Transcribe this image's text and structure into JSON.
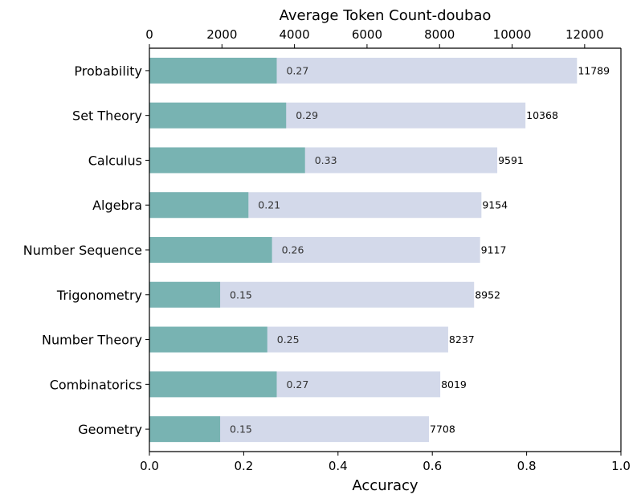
{
  "chart_data": {
    "type": "bar",
    "orientation": "horizontal",
    "categories": [
      "Probability",
      "Set Theory",
      "Calculus",
      "Algebra",
      "Number Sequence",
      "Trigonometry",
      "Number Theory",
      "Combinatorics",
      "Geometry"
    ],
    "series": [
      {
        "axis": "bottom",
        "values": [
          0.27,
          0.29,
          0.33,
          0.21,
          0.26,
          0.15,
          0.25,
          0.27,
          0.15
        ],
        "color": "#78b3b2"
      },
      {
        "axis": "top",
        "values": [
          11789,
          10368,
          9591,
          9154,
          9117,
          8952,
          8237,
          8019,
          7708
        ],
        "color": "#d3d9ea"
      }
    ],
    "xlabel_bottom": "Accuracy",
    "xlabel_top": "Average Token Count-doubao",
    "xlim_bottom": [
      0,
      1.0
    ],
    "xlim_top": [
      0,
      13000
    ],
    "xticks_bottom": [
      "0.0",
      "0.2",
      "0.4",
      "0.6",
      "0.8",
      "1.0"
    ],
    "xticks_top": [
      "0",
      "2000",
      "4000",
      "6000",
      "8000",
      "10000",
      "12000"
    ],
    "acc_labels": [
      "0.27",
      "0.29",
      "0.33",
      "0.21",
      "0.26",
      "0.15",
      "0.25",
      "0.27",
      "0.15"
    ],
    "token_labels": [
      "11789",
      "10368",
      "9591",
      "9154",
      "9117",
      "8952",
      "8237",
      "8019",
      "7708"
    ],
    "grid": false,
    "legend": "none"
  }
}
